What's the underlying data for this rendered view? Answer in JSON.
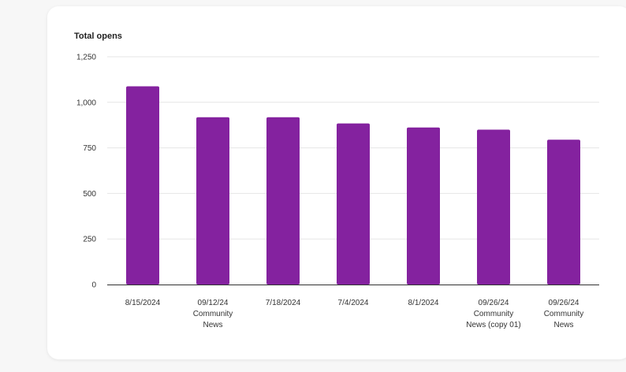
{
  "chart_data": {
    "type": "bar",
    "title": "Total opens",
    "xlabel": "",
    "ylabel": "",
    "ylim": [
      0,
      1250
    ],
    "yticks": [
      "0",
      "250",
      "500",
      "750",
      "1,000",
      "1,250"
    ],
    "categories": [
      [
        "8/15/2024"
      ],
      [
        "09/12/24",
        "Community",
        "News"
      ],
      [
        "7/18/2024"
      ],
      [
        "7/4/2024"
      ],
      [
        "8/1/2024"
      ],
      [
        "09/26/24",
        "Community",
        "News (copy 01)"
      ],
      [
        "09/26/24",
        "Community",
        "News"
      ]
    ],
    "values": [
      1088,
      918,
      918,
      884,
      862,
      850,
      795
    ],
    "grid": true,
    "legend": "none",
    "colors": {
      "bar": "#84229f",
      "grid": "#e6e6e6",
      "axis": "#333333"
    }
  }
}
